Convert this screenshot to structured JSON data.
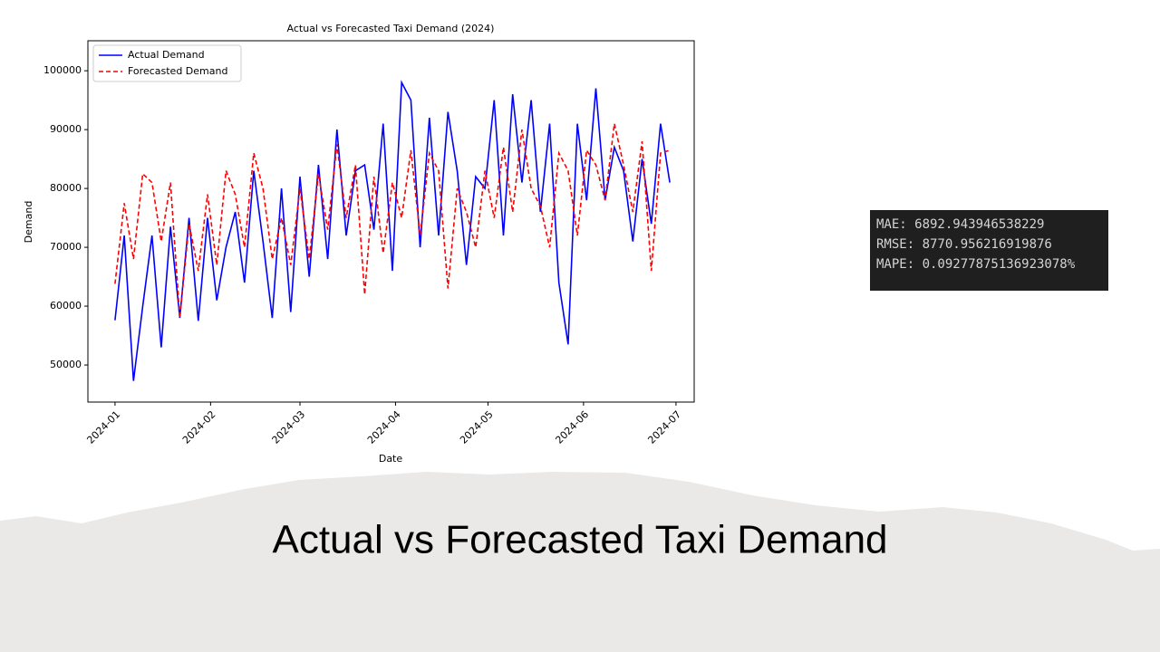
{
  "slide_title": "Actual vs Forecasted Taxi Demand",
  "metrics": [
    "MAE: 6892.943946538229",
    "RMSE: 8770.956216919876",
    "MAPE: 0.09277875136923078%"
  ],
  "chart_data": {
    "type": "line",
    "title": "Actual vs Forecasted Taxi Demand (2024)",
    "x_label": "Date",
    "y_label": "Demand",
    "x": [
      0,
      3,
      6,
      9,
      12,
      15,
      18,
      21,
      24,
      27,
      30,
      33,
      36,
      39,
      42,
      45,
      48,
      51,
      54,
      57,
      60,
      63,
      66,
      69,
      72,
      75,
      78,
      81,
      84,
      87,
      90,
      93,
      96,
      99,
      102,
      105,
      108,
      111,
      114,
      117,
      120,
      123,
      126,
      129,
      132,
      135,
      138,
      141,
      144,
      147,
      150,
      153,
      156,
      159,
      162,
      165,
      168,
      171,
      174,
      177,
      180
    ],
    "series": [
      {
        "name": "Actual Demand",
        "color": "#0000ff",
        "dash": "solid",
        "values": [
          57600,
          72000,
          47300,
          60000,
          72000,
          53000,
          73500,
          58000,
          75000,
          57500,
          75000,
          61000,
          70000,
          76000,
          64000,
          83000,
          71000,
          58000,
          80000,
          59000,
          82000,
          65000,
          84000,
          68000,
          90000,
          72000,
          83000,
          84000,
          73000,
          91000,
          66000,
          98000,
          95000,
          70000,
          92000,
          72000,
          93000,
          83000,
          67000,
          82000,
          80000,
          95000,
          72000,
          96000,
          81000,
          95000,
          76000,
          91000,
          64000,
          53500,
          91000,
          78000,
          97000,
          78000,
          87000,
          83000,
          71000,
          85000,
          74000,
          91000,
          81000
        ]
      },
      {
        "name": "Forecasted Demand",
        "color": "#ff0000",
        "dash": "dashed",
        "values": [
          63800,
          77500,
          68000,
          82500,
          81000,
          71000,
          81000,
          58000,
          74000,
          66000,
          79000,
          67000,
          83000,
          79000,
          70000,
          86000,
          80000,
          68000,
          75000,
          67000,
          80000,
          68000,
          82500,
          73000,
          87500,
          75000,
          84000,
          62000,
          82000,
          69000,
          81000,
          75000,
          86500,
          72000,
          86000,
          83000,
          63000,
          80000,
          76000,
          70000,
          83000,
          75000,
          87000,
          76000,
          90000,
          80000,
          77000,
          70000,
          86000,
          83000,
          72000,
          86500,
          84000,
          78000,
          91000,
          84000,
          76000,
          88000,
          66000,
          86000,
          86500
        ]
      }
    ],
    "xlim": [
      -8.8,
      187.9
    ],
    "xticks": [
      {
        "value": 0,
        "label": "2024-01"
      },
      {
        "value": 31,
        "label": "2024-02"
      },
      {
        "value": 60,
        "label": "2024-03"
      },
      {
        "value": 91,
        "label": "2024-04"
      },
      {
        "value": 121,
        "label": "2024-05"
      },
      {
        "value": 152,
        "label": "2024-06"
      },
      {
        "value": 182,
        "label": "2024-07"
      }
    ],
    "ylim": [
      43700,
      105100
    ],
    "yticks": [
      50000,
      60000,
      70000,
      80000,
      90000,
      100000
    ],
    "legend": "upper left",
    "grid": false
  }
}
